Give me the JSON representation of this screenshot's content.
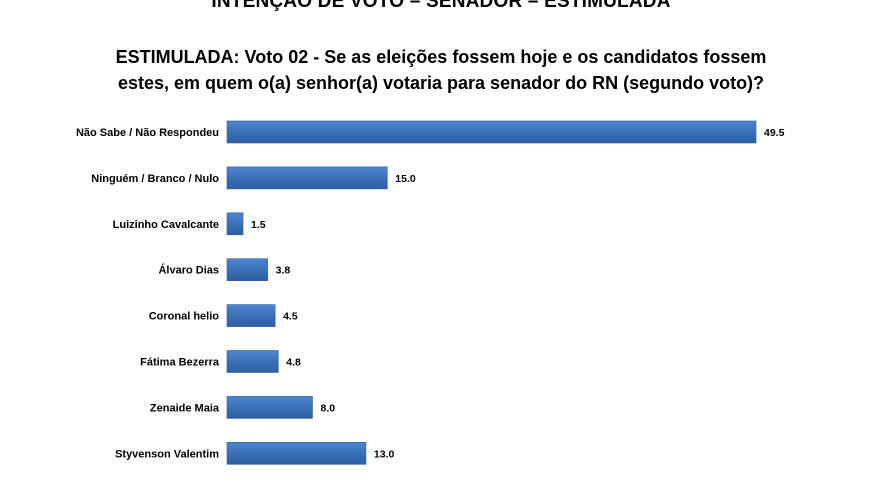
{
  "header": {
    "title": "INTENÇÃO DE VOTO – SENADOR – ESTIMULADA",
    "subtitle_line1": "ESTIMULADA: Voto 02 - Se as eleições fossem hoje e os candidatos fossem",
    "subtitle_line2": "estes, em quem o(a) senhor(a) votaria para senador do RN (segundo voto)?"
  },
  "chart_data": {
    "type": "bar",
    "orientation": "horizontal",
    "categories": [
      "Não Sabe / Não Respondeu",
      "Ninguém / Branco / Nulo",
      "Luizinho Cavalcante",
      "Álvaro Dias",
      "Coronal helio",
      "Fátima Bezerra",
      "Zenaide Maia",
      "Styvenson Valentim"
    ],
    "values": [
      49.5,
      15.0,
      1.5,
      3.8,
      4.5,
      4.8,
      8.0,
      13.0
    ],
    "value_labels": [
      "49.5",
      "15.0",
      "1.5",
      "3.8",
      "4.5",
      "4.8",
      "8.0",
      "13.0"
    ],
    "title": "",
    "xlabel": "",
    "ylabel": "",
    "xlim": [
      0,
      49.5
    ],
    "grid": false,
    "legend": "none",
    "bar_color": "#3a71b9"
  }
}
